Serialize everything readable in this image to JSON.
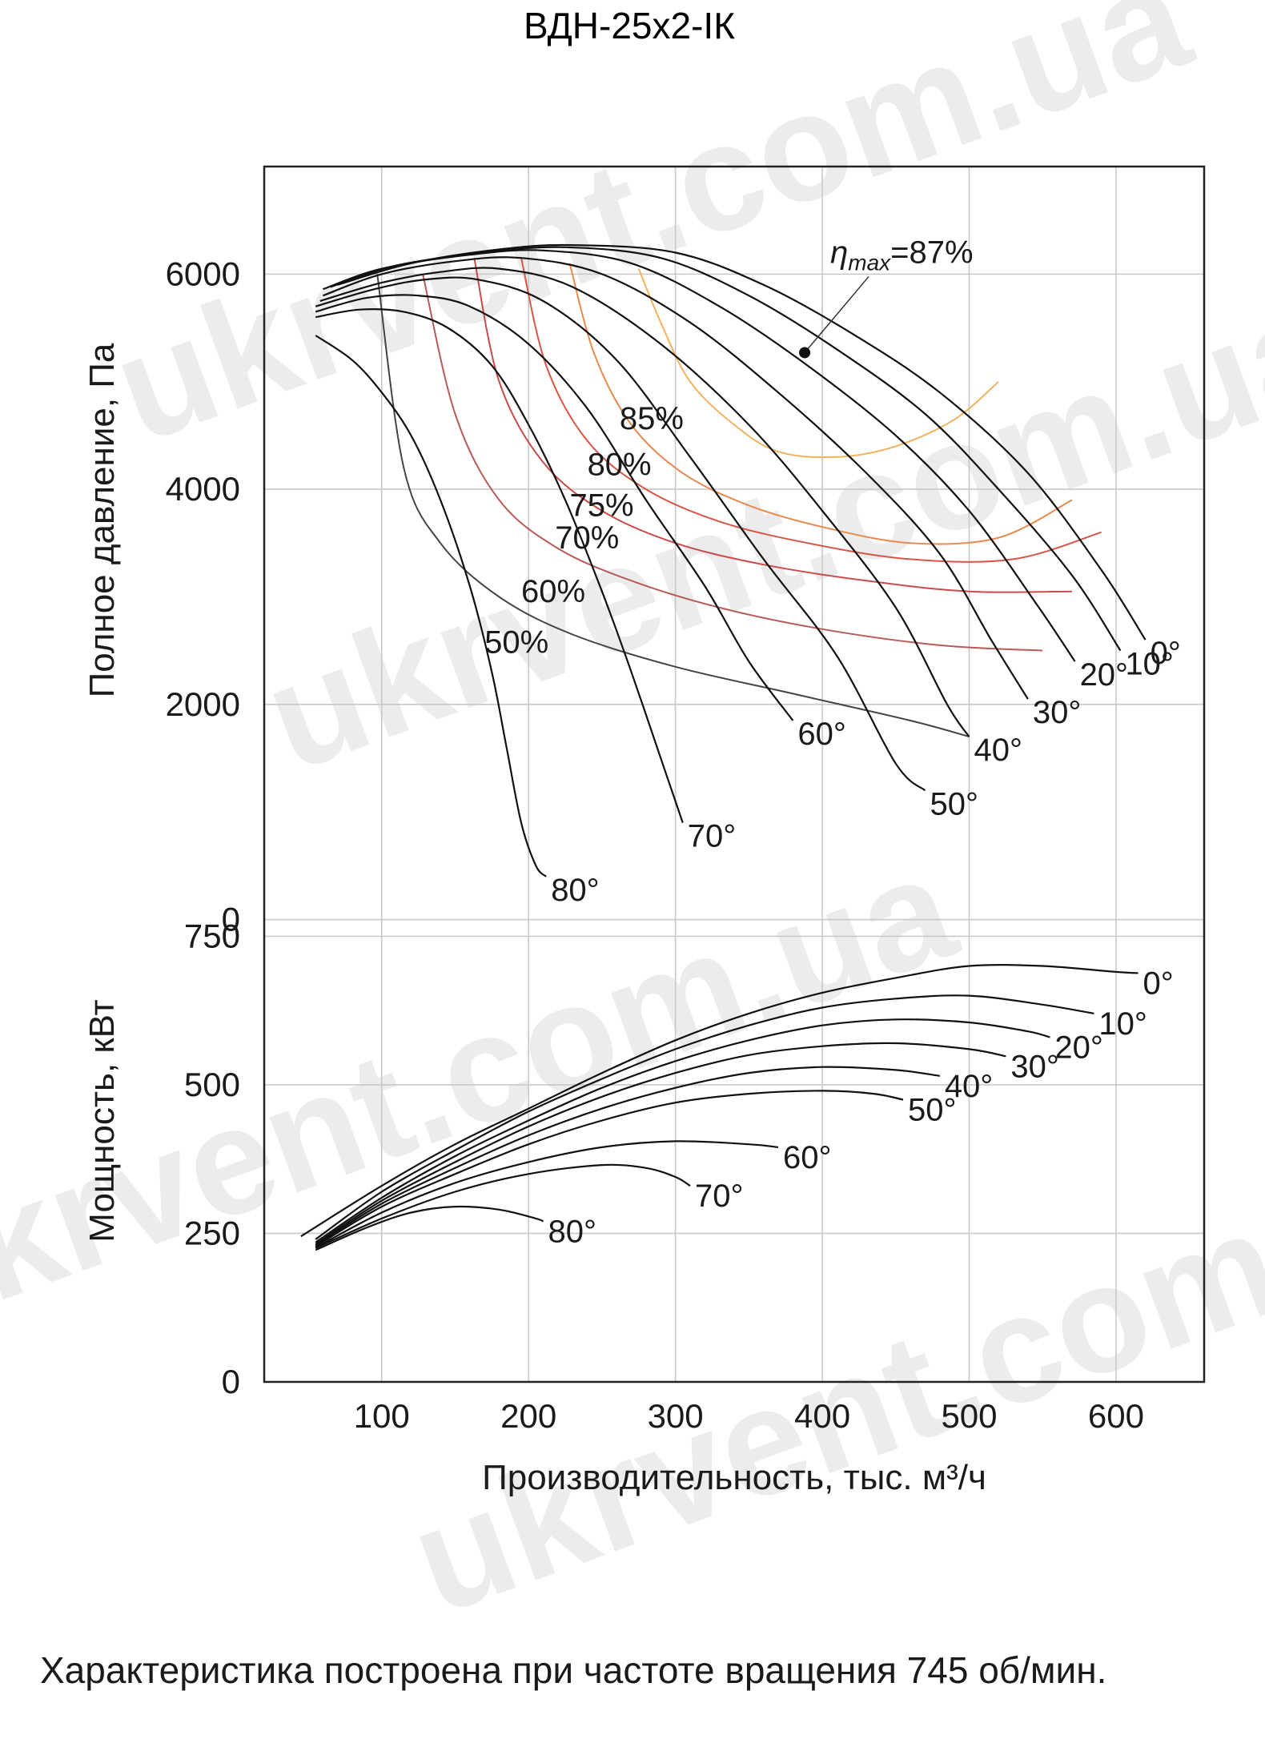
{
  "watermark": "ukrvent.com.ua",
  "caption": "Характеристика построена при частоте вращения 745 об/мин.",
  "chart_data": [
    {
      "type": "line",
      "title": "ВДН-25х2-ІК",
      "xlabel": "Производительность, тыс. м³/ч",
      "ylabel": "Полное давление, Па",
      "xlim": [
        20,
        660
      ],
      "ylim": [
        -100,
        7000
      ],
      "xticks": [
        "100",
        "200",
        "300",
        "400",
        "500",
        "600"
      ],
      "yticks": [
        "0",
        "2000",
        "4000",
        "6000"
      ],
      "grid": true,
      "annotation": {
        "text_prefix": "η",
        "text_sub": "max",
        "text_value": "=87%",
        "point": [
          388,
          5270
        ]
      },
      "series": [
        {
          "name": "0°",
          "x": [
            70,
            120,
            180,
            230,
            300,
            360,
            420,
            480,
            540,
            590,
            620
          ],
          "y": [
            5900,
            6100,
            6230,
            6270,
            6200,
            5900,
            5450,
            4900,
            4150,
            3250,
            2600
          ]
        },
        {
          "name": "10°",
          "x": [
            65,
            110,
            170,
            225,
            290,
            350,
            410,
            470,
            520,
            570,
            603
          ],
          "y": [
            5880,
            6080,
            6200,
            6250,
            6150,
            5800,
            5300,
            4700,
            4000,
            3200,
            2500
          ]
        },
        {
          "name": "20°",
          "x": [
            60,
            100,
            160,
            210,
            270,
            330,
            390,
            450,
            500,
            545,
            572
          ],
          "y": [
            5860,
            6050,
            6180,
            6220,
            6100,
            5700,
            5150,
            4500,
            3800,
            2950,
            2400
          ]
        },
        {
          "name": "30°",
          "x": [
            60,
            100,
            150,
            195,
            250,
            310,
            370,
            430,
            480,
            515,
            540
          ],
          "y": [
            5800,
            6000,
            6120,
            6150,
            6000,
            5550,
            4900,
            4150,
            3400,
            2600,
            2050
          ]
        },
        {
          "name": "40°",
          "x": [
            58,
            100,
            140,
            180,
            230,
            290,
            350,
            400,
            450,
            485,
            500
          ],
          "y": [
            5750,
            5920,
            6020,
            6050,
            5880,
            5350,
            4600,
            3800,
            2900,
            2000,
            1700
          ]
        },
        {
          "name": "50°",
          "x": [
            55,
            95,
            130,
            165,
            210,
            260,
            310,
            360,
            410,
            450,
            470
          ],
          "y": [
            5700,
            5860,
            5950,
            5950,
            5750,
            5200,
            4300,
            3350,
            2450,
            1450,
            1200
          ]
        },
        {
          "name": "60°",
          "x": [
            55,
            90,
            125,
            160,
            200,
            240,
            280,
            320,
            350,
            380
          ],
          "y": [
            5650,
            5780,
            5800,
            5700,
            5350,
            4750,
            3900,
            3100,
            2400,
            1850
          ]
        },
        {
          "name": "70°",
          "x": [
            55,
            85,
            115,
            145,
            175,
            200,
            225,
            250,
            270,
            290,
            305
          ],
          "y": [
            5600,
            5670,
            5650,
            5500,
            5150,
            4600,
            3900,
            3050,
            2300,
            1500,
            900
          ]
        },
        {
          "name": "80°",
          "x": [
            55,
            80,
            100,
            120,
            140,
            160,
            175,
            185,
            195,
            205,
            212
          ],
          "y": [
            5430,
            5200,
            4900,
            4500,
            3900,
            3100,
            2300,
            1600,
            900,
            500,
            400
          ]
        }
      ],
      "efficiency_curves": [
        {
          "label": "50%",
          "label_pos": [
            170,
            2480
          ],
          "color": "#444444",
          "x": [
            97,
            115,
            140,
            180,
            230,
            300,
            380,
            460,
            500
          ],
          "y": [
            6000,
            4200,
            3500,
            3000,
            2650,
            2350,
            2100,
            1850,
            1700
          ]
        },
        {
          "label": "60%",
          "label_pos": [
            195,
            2950
          ],
          "color": "#b85a5a",
          "x": [
            128,
            150,
            180,
            220,
            270,
            330,
            400,
            480,
            550
          ],
          "y": [
            6000,
            4700,
            3900,
            3450,
            3150,
            2900,
            2700,
            2550,
            2500
          ]
        },
        {
          "label": "70%",
          "label_pos": [
            218,
            3450
          ],
          "color": "#cc4a4a",
          "x": [
            163,
            180,
            210,
            250,
            300,
            360,
            430,
            500,
            570
          ],
          "y": [
            6150,
            5000,
            4250,
            3800,
            3500,
            3300,
            3150,
            3050,
            3050
          ]
        },
        {
          "label": "75%",
          "label_pos": [
            228,
            3750
          ],
          "color": "#d95545",
          "x": [
            195,
            212,
            240,
            280,
            330,
            390,
            460,
            530,
            590
          ],
          "y": [
            6150,
            5150,
            4450,
            4000,
            3700,
            3500,
            3350,
            3350,
            3600
          ]
        },
        {
          "label": "80%",
          "label_pos": [
            240,
            4130
          ],
          "color": "#e88a4e",
          "x": [
            228,
            245,
            270,
            305,
            350,
            400,
            460,
            520,
            570
          ],
          "y": [
            6100,
            5250,
            4600,
            4150,
            3850,
            3650,
            3500,
            3550,
            3900
          ]
        },
        {
          "label": "85%",
          "label_pos": [
            262,
            4560
          ],
          "color": "#f2b25e",
          "x": [
            275,
            290,
            310,
            340,
            370,
            410,
            450,
            490,
            520
          ],
          "y": [
            6050,
            5550,
            5000,
            4600,
            4350,
            4300,
            4400,
            4650,
            5000
          ]
        }
      ]
    },
    {
      "type": "line",
      "title": "",
      "xlabel": "Производительность, тыс. м³/ч",
      "ylabel": "Мощность, кВт",
      "xlim": [
        20,
        660
      ],
      "ylim": [
        0,
        760
      ],
      "yticks": [
        "0",
        "250",
        "500",
        "750"
      ],
      "grid": true,
      "series": [
        {
          "name": "0°",
          "x": [
            45,
            100,
            150,
            200,
            250,
            300,
            350,
            400,
            450,
            500,
            550,
            600,
            615
          ],
          "y": [
            245,
            330,
            400,
            460,
            520,
            575,
            620,
            655,
            680,
            700,
            700,
            690,
            688
          ]
        },
        {
          "name": "10°",
          "x": [
            55,
            100,
            150,
            200,
            250,
            300,
            350,
            400,
            450,
            500,
            550,
            585
          ],
          "y": [
            240,
            320,
            390,
            455,
            510,
            560,
            600,
            630,
            645,
            650,
            635,
            620
          ]
        },
        {
          "name": "20°",
          "x": [
            55,
            100,
            150,
            200,
            250,
            300,
            350,
            400,
            450,
            500,
            540,
            555
          ],
          "y": [
            235,
            310,
            380,
            440,
            495,
            540,
            575,
            600,
            610,
            605,
            590,
            580
          ]
        },
        {
          "name": "30°",
          "x": [
            55,
            100,
            150,
            200,
            250,
            300,
            350,
            400,
            450,
            500,
            525
          ],
          "y": [
            232,
            305,
            370,
            430,
            480,
            520,
            550,
            565,
            570,
            560,
            548
          ]
        },
        {
          "name": "40°",
          "x": [
            55,
            100,
            150,
            200,
            250,
            300,
            350,
            400,
            450,
            480
          ],
          "y": [
            230,
            300,
            360,
            415,
            460,
            495,
            520,
            530,
            525,
            515
          ]
        },
        {
          "name": "50°",
          "x": [
            55,
            100,
            150,
            200,
            250,
            300,
            350,
            400,
            435,
            455
          ],
          "y": [
            228,
            295,
            350,
            400,
            440,
            470,
            485,
            490,
            485,
            475
          ]
        },
        {
          "name": "60°",
          "x": [
            55,
            100,
            150,
            200,
            250,
            300,
            350,
            370
          ],
          "y": [
            226,
            285,
            335,
            370,
            395,
            405,
            400,
            395
          ]
        },
        {
          "name": "70°",
          "x": [
            55,
            100,
            150,
            200,
            250,
            280,
            300,
            310
          ],
          "y": [
            225,
            275,
            320,
            350,
            365,
            360,
            345,
            330
          ]
        },
        {
          "name": "80°",
          "x": [
            55,
            90,
            120,
            150,
            180,
            205,
            210
          ],
          "y": [
            222,
            260,
            285,
            295,
            290,
            275,
            270
          ]
        }
      ]
    }
  ]
}
